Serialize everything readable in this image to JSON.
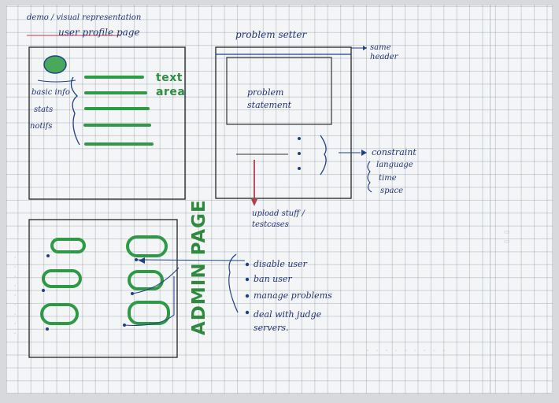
{
  "sketch": {
    "page_title": "demo / visual representation",
    "user_profile": {
      "title": "user profile page",
      "sidebar": [
        "basic info",
        "stats",
        "notifs"
      ],
      "text_area_label": "text area"
    },
    "problem_setter": {
      "title": "problem setter",
      "same_header": "same header",
      "problem_statement": "problem statement",
      "constraint": "constraint",
      "constraint_items": [
        "language",
        "time",
        "space"
      ],
      "upload": "upload stuff / testcases"
    },
    "admin": {
      "page_label": "ADMIN PAGE",
      "actions": [
        "disable user",
        "ban user",
        "manage problems",
        "deal with judge servers."
      ]
    }
  },
  "colors": {
    "ink_blue": "#213278",
    "marker_green": "#2e9a46",
    "marker_red": "#b93a4a"
  }
}
